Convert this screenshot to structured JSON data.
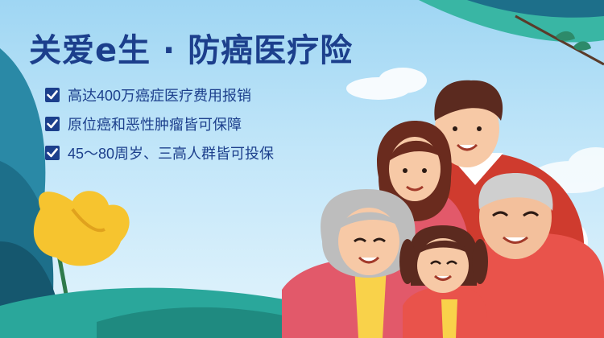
{
  "banner": {
    "title": "关爱e生 · 防癌医疗险",
    "features": [
      {
        "text": "高达400万癌症医疗费用报销"
      },
      {
        "text": "原位癌和恶性肿瘤皆可保障"
      },
      {
        "text": "45～80周岁、三高人群皆可投保"
      }
    ]
  },
  "colors": {
    "title": "#1c3f8c",
    "sky": "#b9e3f8",
    "check_box": "#1c3f8c",
    "foliage": "#1d6f8a",
    "grass": "#2aa79b",
    "flower": "#f6c42f",
    "grandma_top": "#e2596a",
    "dad_top": "#cf3b2e",
    "grandpa_top": "#e9534b"
  },
  "icons": [
    "checkbox-icon",
    "leaf-branch-icon",
    "flower-icon",
    "cloud-icon"
  ]
}
